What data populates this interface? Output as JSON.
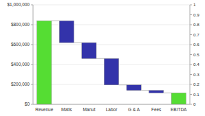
{
  "chart_data": {
    "type": "waterfall",
    "categories": [
      "Revenue",
      "Matls",
      "Manut",
      "Labor",
      "G & A",
      "Fees",
      "EBITDA"
    ],
    "values": [
      840000,
      220000,
      160000,
      265000,
      55000,
      25000,
      115000
    ],
    "bottoms": [
      0,
      620000,
      460000,
      195000,
      140000,
      115000,
      0
    ],
    "connectors": [
      840000,
      620000,
      460000,
      195000,
      140000,
      115000
    ],
    "colors": [
      "#55dd33",
      "#3333aa",
      "#3333aa",
      "#3333aa",
      "#3333aa",
      "#3333aa",
      "#55dd33"
    ],
    "ylim": [
      0,
      1000000
    ],
    "yticks": [
      {
        "value": 0,
        "label": "$0"
      },
      {
        "value": 200000,
        "label": "$200,000"
      },
      {
        "value": 400000,
        "label": "$400,000"
      },
      {
        "value": 600000,
        "label": "$600,000"
      },
      {
        "value": 800000,
        "label": "$800,000"
      },
      {
        "value": 1000000,
        "label": "$1,000,000"
      }
    ],
    "y2lim": [
      0,
      1
    ],
    "y2ticks": [
      0,
      0.1,
      0.2,
      0.3,
      0.4,
      0.5,
      0.6,
      0.7,
      0.8,
      0.9,
      1
    ],
    "grid": true
  }
}
